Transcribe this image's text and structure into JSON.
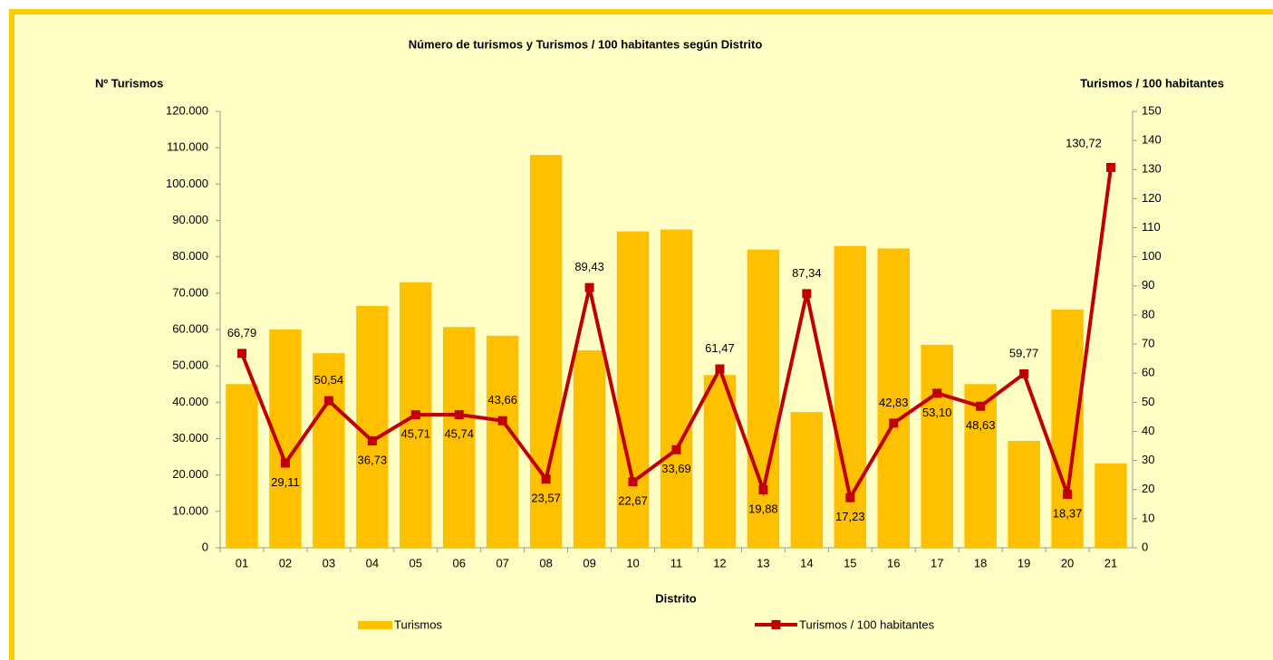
{
  "chart_data": {
    "type": "bar-line",
    "title": "Número de turismos y Turismos / 100 habitantes según Distrito",
    "y_label": "Nº Turismos",
    "y2_label": "Turismos / 100 habitantes",
    "x_label": "Distrito",
    "categories": [
      "01",
      "02",
      "03",
      "04",
      "05",
      "06",
      "07",
      "08",
      "09",
      "10",
      "11",
      "12",
      "13",
      "14",
      "15",
      "16",
      "17",
      "18",
      "19",
      "20",
      "21"
    ],
    "series": [
      {
        "name": "Turismos",
        "type": "bar",
        "color": "#ffc000",
        "values": [
          45000,
          60000,
          53500,
          66500,
          73000,
          60700,
          58300,
          108000,
          54300,
          87000,
          87500,
          47500,
          82000,
          37300,
          83000,
          82300,
          55800,
          45000,
          29400,
          65500,
          23200
        ]
      },
      {
        "name": "Turismos / 100 habitantes",
        "type": "line",
        "axis": "y2",
        "color": "#c00000",
        "values": [
          66.79,
          29.11,
          50.54,
          36.73,
          45.71,
          45.74,
          43.66,
          23.57,
          89.43,
          22.67,
          33.69,
          61.47,
          19.88,
          87.34,
          17.23,
          42.83,
          53.1,
          48.63,
          59.77,
          18.37,
          130.72
        ],
        "value_labels": [
          "66,79",
          "29,11",
          "50,54",
          "36,73",
          "45,71",
          "45,74",
          "43,66",
          "23,57",
          "89,43",
          "22,67",
          "33,69",
          "61,47",
          "19,88",
          "87,34",
          "17,23",
          "42,83",
          "53,10",
          "48,63",
          "59,77",
          "18,37",
          "130,72"
        ]
      }
    ],
    "ylim": [
      0,
      120000
    ],
    "yticks": [
      0,
      {
        "value": 10000,
        "label": "10.000"
      },
      {
        "value": 20000,
        "label": "20.000"
      },
      {
        "value": 30000,
        "label": "30.000"
      },
      {
        "value": 40000,
        "label": "40.000"
      },
      {
        "value": 50000,
        "label": "50.000"
      },
      {
        "value": 60000,
        "label": "60.000"
      },
      {
        "value": 70000,
        "label": "70.000"
      },
      {
        "value": 80000,
        "label": "80.000"
      },
      {
        "value": 90000,
        "label": "90.000"
      },
      {
        "value": 100000,
        "label": "100.000"
      },
      {
        "value": 110000,
        "label": "110.000"
      },
      {
        "value": 120000,
        "label": "120.000"
      }
    ],
    "y2lim": [
      0,
      150
    ],
    "y2ticks": [
      0,
      10,
      20,
      30,
      40,
      50,
      60,
      70,
      80,
      90,
      100,
      110,
      120,
      130,
      140,
      150
    ]
  }
}
